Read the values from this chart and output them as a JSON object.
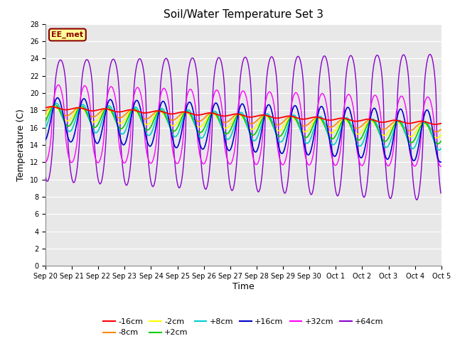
{
  "title": "Soil/Water Temperature Set 3",
  "xlabel": "Time",
  "ylabel": "Temperature (C)",
  "ylim": [
    0,
    28
  ],
  "yticks": [
    0,
    2,
    4,
    6,
    8,
    10,
    12,
    14,
    16,
    18,
    20,
    22,
    24,
    26,
    28
  ],
  "fig_bg_color": "#ffffff",
  "plot_bg_color": "#e8e8e8",
  "annotation_text": "EE_met",
  "annotation_bg": "#ffff99",
  "annotation_border": "#8b0000",
  "annotation_text_color": "#8b0000",
  "series_colors": {
    "-16cm": "#ff0000",
    "-8cm": "#ff8800",
    "-2cm": "#ffff00",
    "+2cm": "#00cc00",
    "+8cm": "#00cccc",
    "+16cm": "#0000cc",
    "+32cm": "#ff00ff",
    "+64cm": "#8800cc"
  },
  "tick_labels": [
    "Sep 20",
    "Sep 21",
    "Sep 22",
    "Sep 23",
    "Sep 24",
    "Sep 25",
    "Sep 26",
    "Sep 27",
    "Sep 28",
    "Sep 29",
    "Sep 30",
    "Oct 1",
    "Oct 2",
    "Oct 3",
    "Oct 4",
    "Oct 5"
  ]
}
